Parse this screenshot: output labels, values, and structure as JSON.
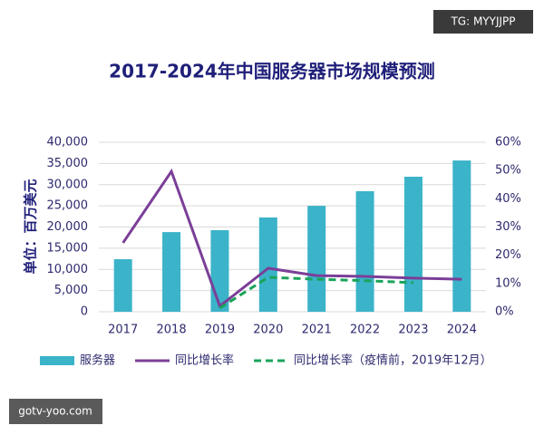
{
  "watermarks": [
    "TG: MYYJJPP",
    "gotv-yoo.com"
  ],
  "chart_data": {
    "type": "bar",
    "title": "2017-2024年中国服务器市场规模预测",
    "y_label": "单位：百万美元",
    "categories": [
      "2017",
      "2018",
      "2019",
      "2020",
      "2021",
      "2022",
      "2023",
      "2024"
    ],
    "series": [
      {
        "name": "服务器",
        "type": "bar",
        "color": "#3bb3c9",
        "values": [
          12400,
          18800,
          19250,
          22250,
          25000,
          28450,
          31870,
          35700
        ]
      },
      {
        "name": "同比增长率",
        "type": "line",
        "axis": "y2",
        "color": "#7b3f98",
        "values": [
          24.4,
          49.7,
          2,
          15.4,
          12.8,
          12.5,
          11.9,
          11.5
        ]
      },
      {
        "name": "同比增长率（疫情前，2019年12月）",
        "type": "line",
        "axis": "y2",
        "dashed": true,
        "color": "#1aa35a",
        "values": [
          null,
          null,
          1.3,
          12.2,
          11.5,
          11,
          10.3,
          null
        ]
      }
    ],
    "ylim": [
      0,
      40000
    ],
    "yticks": [
      0,
      {
        "value": 5000,
        "label": "5,000"
      },
      {
        "value": 10000,
        "label": "10,000"
      },
      {
        "value": 15000,
        "label": "15,000"
      },
      {
        "value": 20000,
        "label": "20,000"
      },
      {
        "value": 25000,
        "label": "25,000"
      },
      {
        "value": 30000,
        "label": "30,000"
      },
      {
        "value": 35000,
        "label": "35,000"
      },
      {
        "value": 40000,
        "label": "40,000"
      }
    ],
    "y2lim": [
      0,
      60
    ],
    "y2ticks": [
      {
        "value": 0,
        "label": "0%"
      },
      {
        "value": 10,
        "label": "10%"
      },
      {
        "value": 20,
        "label": "20%"
      },
      {
        "value": 30,
        "label": "30%"
      },
      {
        "value": 40,
        "label": "40%"
      },
      {
        "value": 50,
        "label": "50%"
      },
      {
        "value": 60,
        "label": "60%"
      }
    ],
    "grid": true,
    "legend": "bottom"
  }
}
